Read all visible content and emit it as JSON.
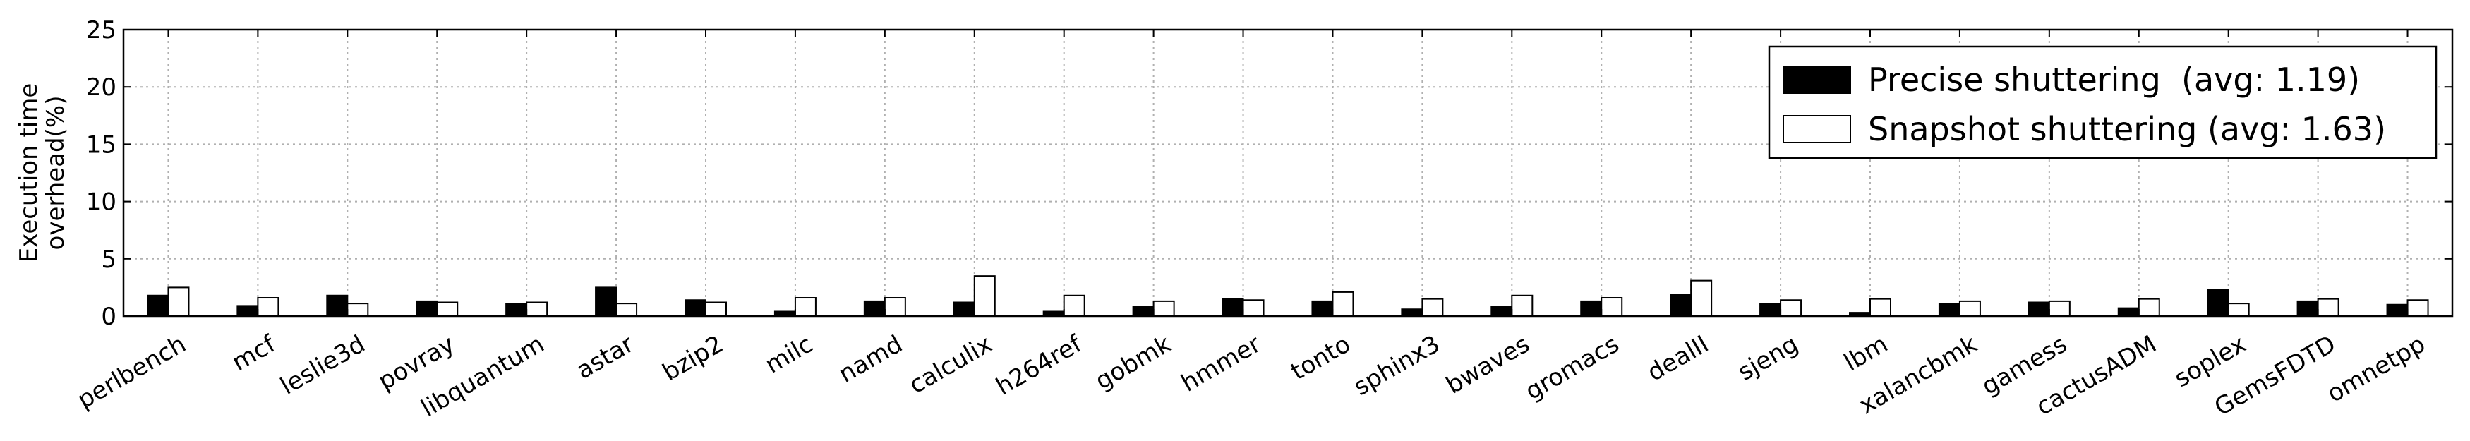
{
  "chart_data": {
    "type": "bar",
    "ylabel_lines": [
      "Execution time",
      "overhead(%)"
    ],
    "xlabel": "",
    "ylim": [
      0,
      25
    ],
    "yticks": [
      0,
      5,
      10,
      15,
      20,
      25
    ],
    "grid": true,
    "legend_position": "top-right",
    "categories": [
      "perlbench",
      "mcf",
      "leslie3d",
      "povray",
      "libquantum",
      "astar",
      "bzip2",
      "milc",
      "namd",
      "calculix",
      "h264ref",
      "gobmk",
      "hmmer",
      "tonto",
      "sphinx3",
      "bwaves",
      "gromacs",
      "dealII",
      "sjeng",
      "lbm",
      "xalancbmk",
      "gamess",
      "cactusADM",
      "soplex",
      "GemsFDTD",
      "omnetpp"
    ],
    "series": [
      {
        "name": "Precise shuttering  (avg: 1.19)",
        "color": "#000000",
        "values": [
          1.8,
          0.9,
          1.8,
          1.3,
          1.1,
          2.5,
          1.4,
          0.4,
          1.3,
          1.2,
          0.4,
          0.8,
          1.5,
          1.3,
          0.6,
          0.8,
          1.3,
          1.9,
          1.1,
          0.3,
          1.1,
          1.2,
          0.7,
          2.3,
          1.3,
          1.0
        ]
      },
      {
        "name": "Snapshot shuttering (avg: 1.63)",
        "color": "#ffffff",
        "values": [
          2.5,
          1.6,
          1.1,
          1.2,
          1.2,
          1.1,
          1.2,
          1.6,
          1.6,
          3.5,
          1.8,
          1.3,
          1.4,
          2.1,
          1.5,
          1.8,
          1.6,
          3.1,
          1.4,
          1.5,
          1.3,
          1.3,
          1.5,
          1.1,
          1.5,
          1.4
        ]
      }
    ]
  }
}
